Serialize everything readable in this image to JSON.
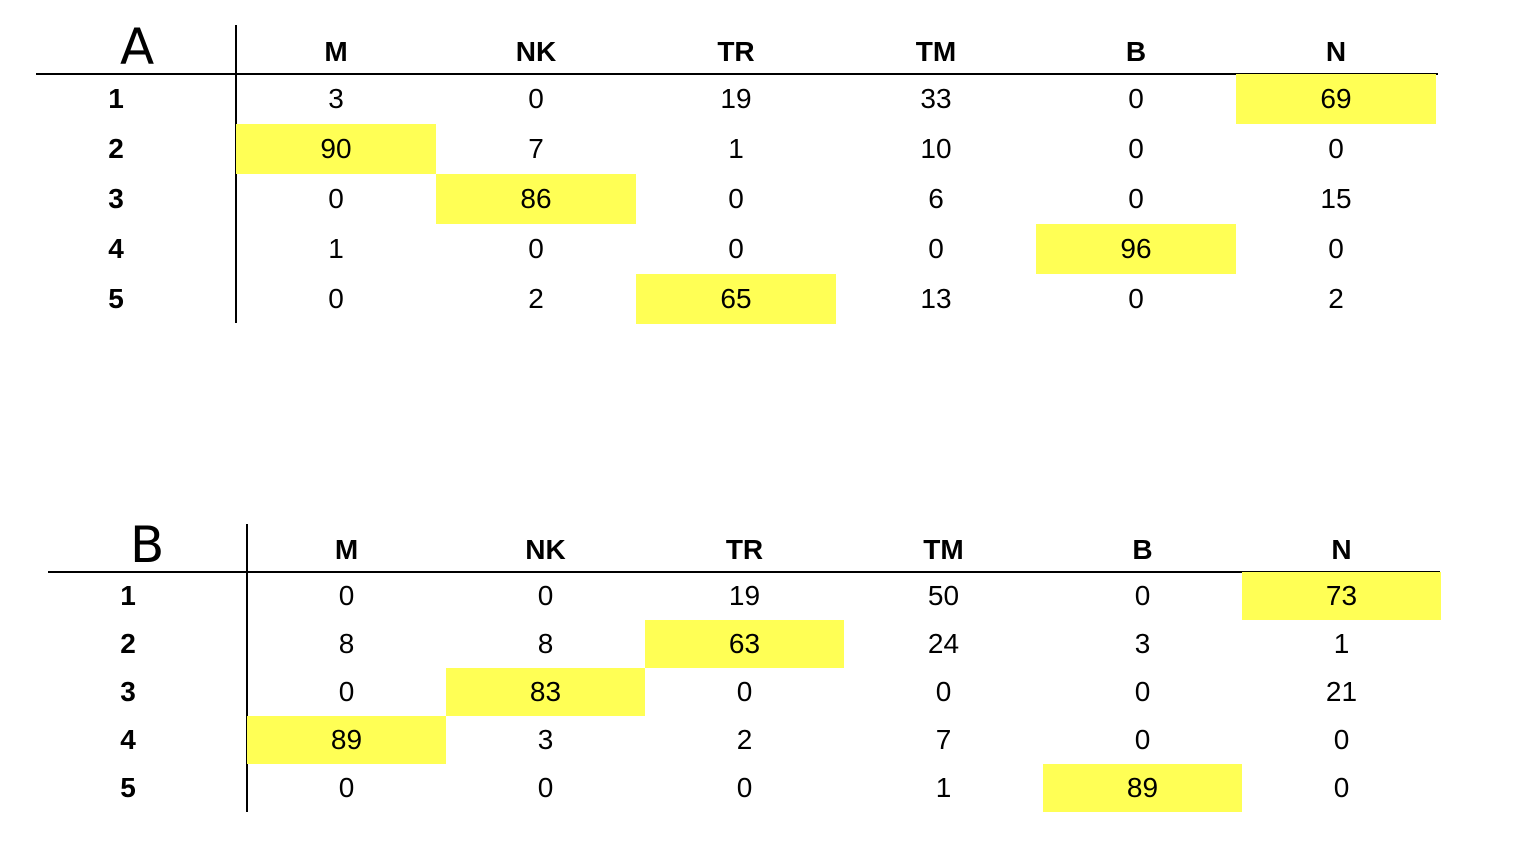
{
  "tables": [
    {
      "label": "A",
      "columns": [
        "M",
        "NK",
        "TR",
        "TM",
        "B",
        "N"
      ],
      "rows": [
        {
          "label": "1",
          "values": [
            "3",
            "0",
            "19",
            "33",
            "0",
            "69"
          ],
          "highlight": 5
        },
        {
          "label": "2",
          "values": [
            "90",
            "7",
            "1",
            "10",
            "0",
            "0"
          ],
          "highlight": 0
        },
        {
          "label": "3",
          "values": [
            "0",
            "86",
            "0",
            "6",
            "0",
            "15"
          ],
          "highlight": 1
        },
        {
          "label": "4",
          "values": [
            "1",
            "0",
            "0",
            "0",
            "96",
            "0"
          ],
          "highlight": 4
        },
        {
          "label": "5",
          "values": [
            "0",
            "2",
            "65",
            "13",
            "0",
            "2"
          ],
          "highlight": 2
        }
      ]
    },
    {
      "label": "B",
      "columns": [
        "M",
        "NK",
        "TR",
        "TM",
        "B",
        "N"
      ],
      "rows": [
        {
          "label": "1",
          "values": [
            "0",
            "0",
            "19",
            "50",
            "0",
            "73"
          ],
          "highlight": 5
        },
        {
          "label": "2",
          "values": [
            "8",
            "8",
            "63",
            "24",
            "3",
            "1"
          ],
          "highlight": 2
        },
        {
          "label": "3",
          "values": [
            "0",
            "83",
            "0",
            "0",
            "0",
            "21"
          ],
          "highlight": 1
        },
        {
          "label": "4",
          "values": [
            "89",
            "3",
            "2",
            "7",
            "0",
            "0"
          ],
          "highlight": 0
        },
        {
          "label": "5",
          "values": [
            "0",
            "0",
            "0",
            "1",
            "89",
            "0"
          ],
          "highlight": 4
        }
      ]
    }
  ],
  "colors": {
    "highlight": "#ffff55"
  }
}
